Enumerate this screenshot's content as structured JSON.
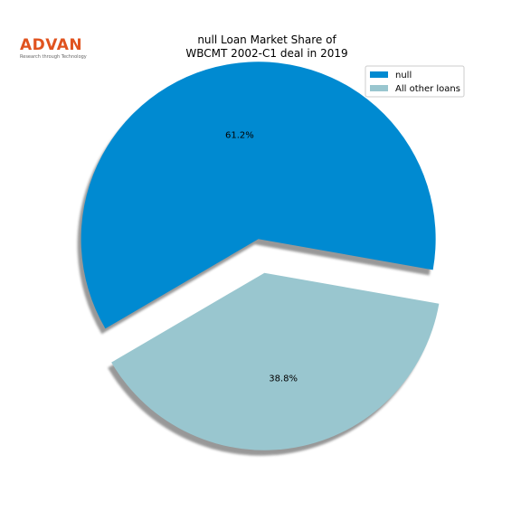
{
  "logo": {
    "brand": "ADVAN",
    "tagline": "Research through Technology",
    "brand_color": "#e0531f"
  },
  "chart_data": {
    "type": "pie",
    "title_lines": [
      "null Loan Market Share of",
      "WBCMT 2002-C1 deal in 2019"
    ],
    "slices": [
      {
        "label": "null",
        "value": 61.2,
        "value_label": "61.2%",
        "color": "#008ad1",
        "exploded": true
      },
      {
        "label": "All other loans",
        "value": 38.8,
        "value_label": "38.8%",
        "color": "#99c6cf",
        "exploded": true
      }
    ],
    "shadow": true,
    "legend_position": "top-right"
  }
}
